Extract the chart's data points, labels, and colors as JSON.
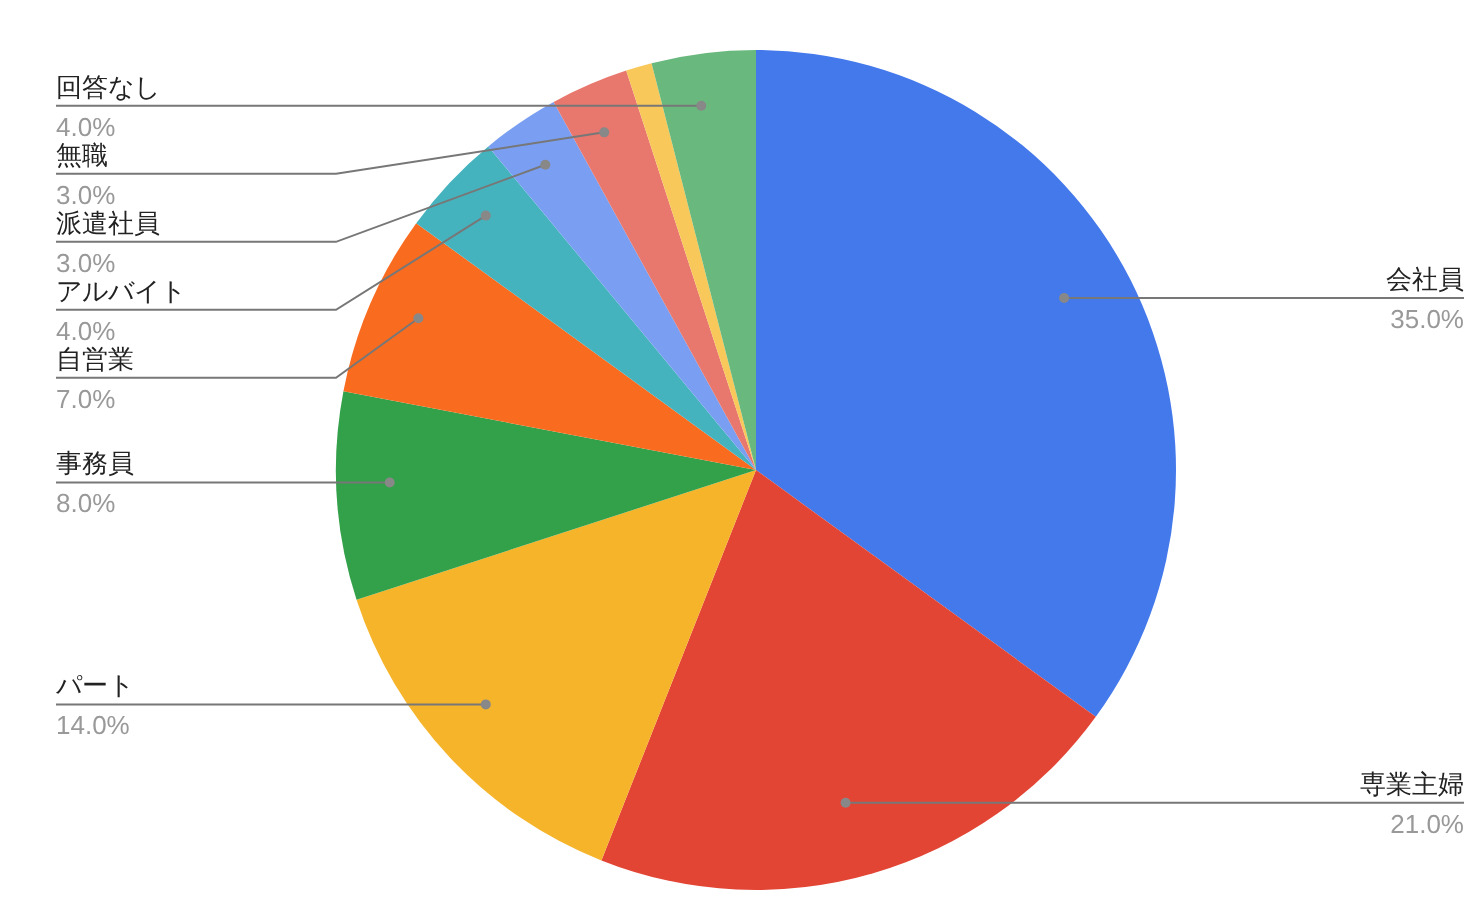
{
  "chart_data": {
    "type": "pie",
    "categories": [
      "会社員",
      "専業主婦",
      "パート",
      "事務員",
      "自営業",
      "アルバイト",
      "派遣社員",
      "無職",
      null,
      "回答なし"
    ],
    "values": [
      35,
      21,
      14,
      8,
      7,
      4,
      3,
      3,
      1,
      4
    ],
    "value_labels": [
      "35.0%",
      "21.0%",
      "14.0%",
      "8.0%",
      "7.0%",
      "4.0%",
      "3.0%",
      "3.0%",
      null,
      "4.0%"
    ],
    "colors": [
      "#4479ec",
      "#e34535",
      "#f6b42b",
      "#33a04a",
      "#f96b1f",
      "#45b3be",
      "#7a9ff2",
      "#e8776d",
      "#f8c95a",
      "#69b87d"
    ]
  }
}
